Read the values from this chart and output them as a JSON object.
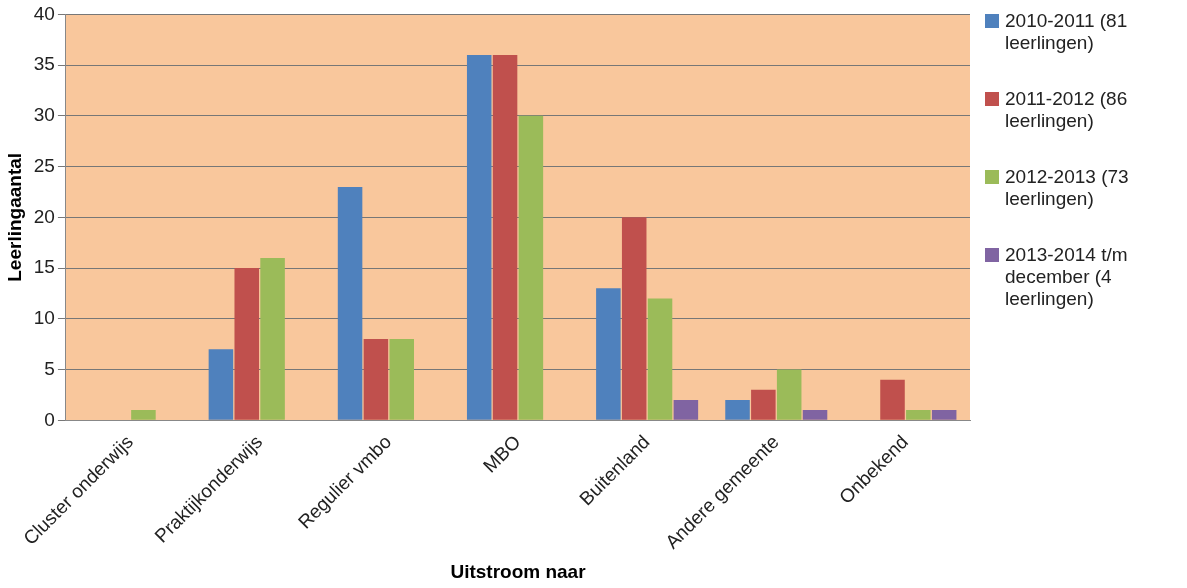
{
  "chart_data": {
    "type": "bar",
    "xlabel": "Uitstroom naar",
    "ylabel": "Leerlingaantal",
    "categories": [
      "Cluster onderwijs",
      "Praktijkonderwijs",
      "Regulier vmbo",
      "MBO",
      "Buitenland",
      "Andere gemeente",
      "Onbekend"
    ],
    "series": [
      {
        "name": "2010-2011 (81 leerlingen)",
        "color": "#4f81bd",
        "values": [
          0,
          7,
          23,
          36,
          13,
          2,
          0
        ]
      },
      {
        "name": "2011-2012 (86 leerlingen)",
        "color": "#c0504d",
        "values": [
          0,
          15,
          8,
          36,
          20,
          3,
          4
        ]
      },
      {
        "name": "2012-2013 (73 leerlingen)",
        "color": "#9bbb59",
        "values": [
          1,
          16,
          8,
          30,
          12,
          5,
          1
        ]
      },
      {
        "name": "2013-2014 t/m december (4 leerlingen)",
        "color": "#8064a2",
        "values": [
          0,
          0,
          0,
          0,
          2,
          1,
          1
        ]
      }
    ],
    "ylim": [
      0,
      40
    ],
    "yticks": [
      0,
      5,
      10,
      15,
      20,
      25,
      30,
      35,
      40
    ],
    "grid": "y",
    "legend": "right"
  }
}
